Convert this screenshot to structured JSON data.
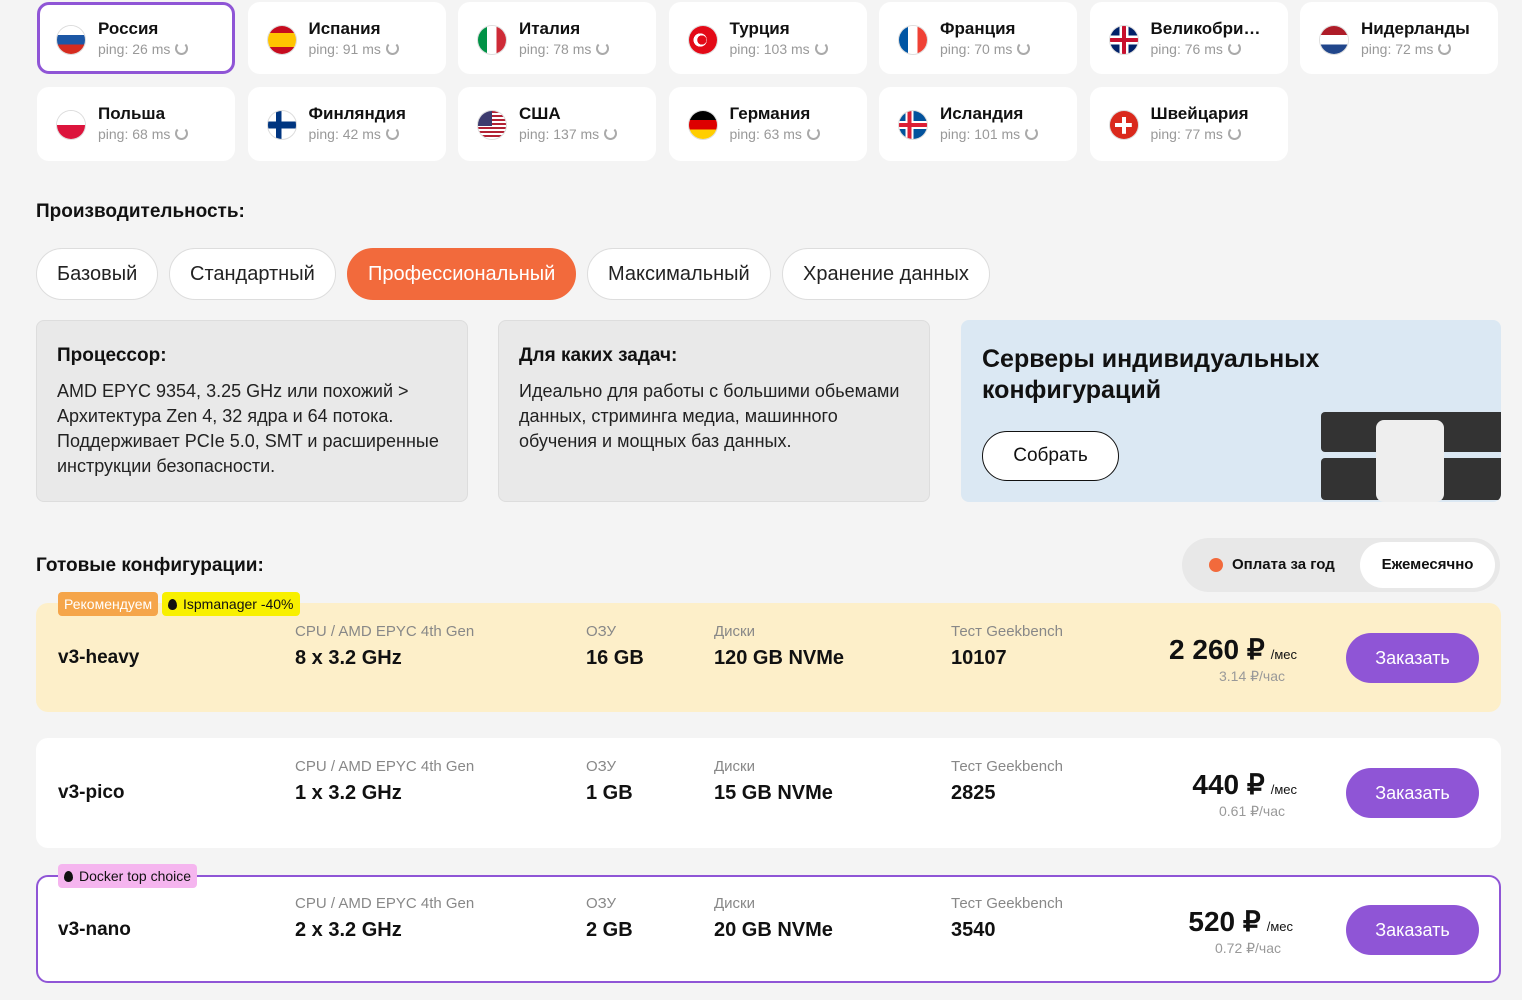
{
  "locations": [
    {
      "name": "Россия",
      "ping": "ping: 26 ms"
    },
    {
      "name": "Испания",
      "ping": "ping: 91 ms"
    },
    {
      "name": "Италия",
      "ping": "ping: 78 ms"
    },
    {
      "name": "Турция",
      "ping": "ping: 103 ms"
    },
    {
      "name": "Франция",
      "ping": "ping: 70 ms"
    },
    {
      "name": "Великобри…",
      "ping": "ping: 76 ms"
    },
    {
      "name": "Нидерланды",
      "ping": "ping: 72 ms"
    },
    {
      "name": "Польша",
      "ping": "ping: 68 ms"
    },
    {
      "name": "Финляндия",
      "ping": "ping: 42 ms"
    },
    {
      "name": "США",
      "ping": "ping: 137 ms"
    },
    {
      "name": "Германия",
      "ping": "ping: 63 ms"
    },
    {
      "name": "Исландия",
      "ping": "ping: 101 ms"
    },
    {
      "name": "Швейцария",
      "ping": "ping: 77 ms"
    }
  ],
  "performance": {
    "title": "Производительность:",
    "tabs": [
      "Базовый",
      "Стандартный",
      "Профессиональный",
      "Максимальный",
      "Хранение данных"
    ]
  },
  "info": [
    {
      "title": "Процессор:",
      "text": "AMD EPYC 9354, 3.25 GHz или похожий > Архитектура Zen 4, 32 ядра и 64 потока. Поддерживает PCIe 5.0, SMT и расширенные инструкции безопасности."
    },
    {
      "title": "Для каких задач:",
      "text": "Идеально для работы с большими обьемами данных, стриминга медиа, машинного обучения и мощных баз данных."
    }
  ],
  "promo": {
    "title": "Серверы индивидуальных конфигураций",
    "button": "Собрать"
  },
  "configs": {
    "title": "Готовые конфигурации:",
    "billing": [
      "Оплата за год",
      "Ежемесячно"
    ],
    "rows": [
      {
        "badges": [
          "Рекомендуем",
          "Ispmanager -40%"
        ],
        "name": "v3-heavy",
        "cpu_label": "CPU / AMD EPYC 4th Gen",
        "cpu": "8 x 3.2 GHz",
        "ram_label": "ОЗУ",
        "ram": "16 GB",
        "disk_label": "Диски",
        "disk": "120 GB NVMe",
        "bench_label": "Тест Geekbench",
        "bench": "10107",
        "price": "2 260 ₽",
        "price_unit": "/мес",
        "hourly": "3.14 ₽/час",
        "button": "Заказать"
      },
      {
        "badges": [],
        "name": "v3-pico",
        "cpu_label": "CPU / AMD EPYC 4th Gen",
        "cpu": "1 x 3.2 GHz",
        "ram_label": "ОЗУ",
        "ram": "1 GB",
        "disk_label": "Диски",
        "disk": "15 GB NVMe",
        "bench_label": "Тест Geekbench",
        "bench": "2825",
        "price": "440 ₽",
        "price_unit": "/мес",
        "hourly": "0.61 ₽/час",
        "button": "Заказать"
      },
      {
        "badges": [
          "Docker top choice"
        ],
        "name": "v3-nano",
        "cpu_label": "CPU / AMD EPYC 4th Gen",
        "cpu": "2 x 3.2 GHz",
        "ram_label": "ОЗУ",
        "ram": "2 GB",
        "disk_label": "Диски",
        "disk": "20 GB NVMe",
        "bench_label": "Тест Geekbench",
        "bench": "3540",
        "price": "520 ₽",
        "price_unit": "/мес",
        "hourly": "0.72 ₽/час",
        "button": "Заказать"
      }
    ]
  }
}
